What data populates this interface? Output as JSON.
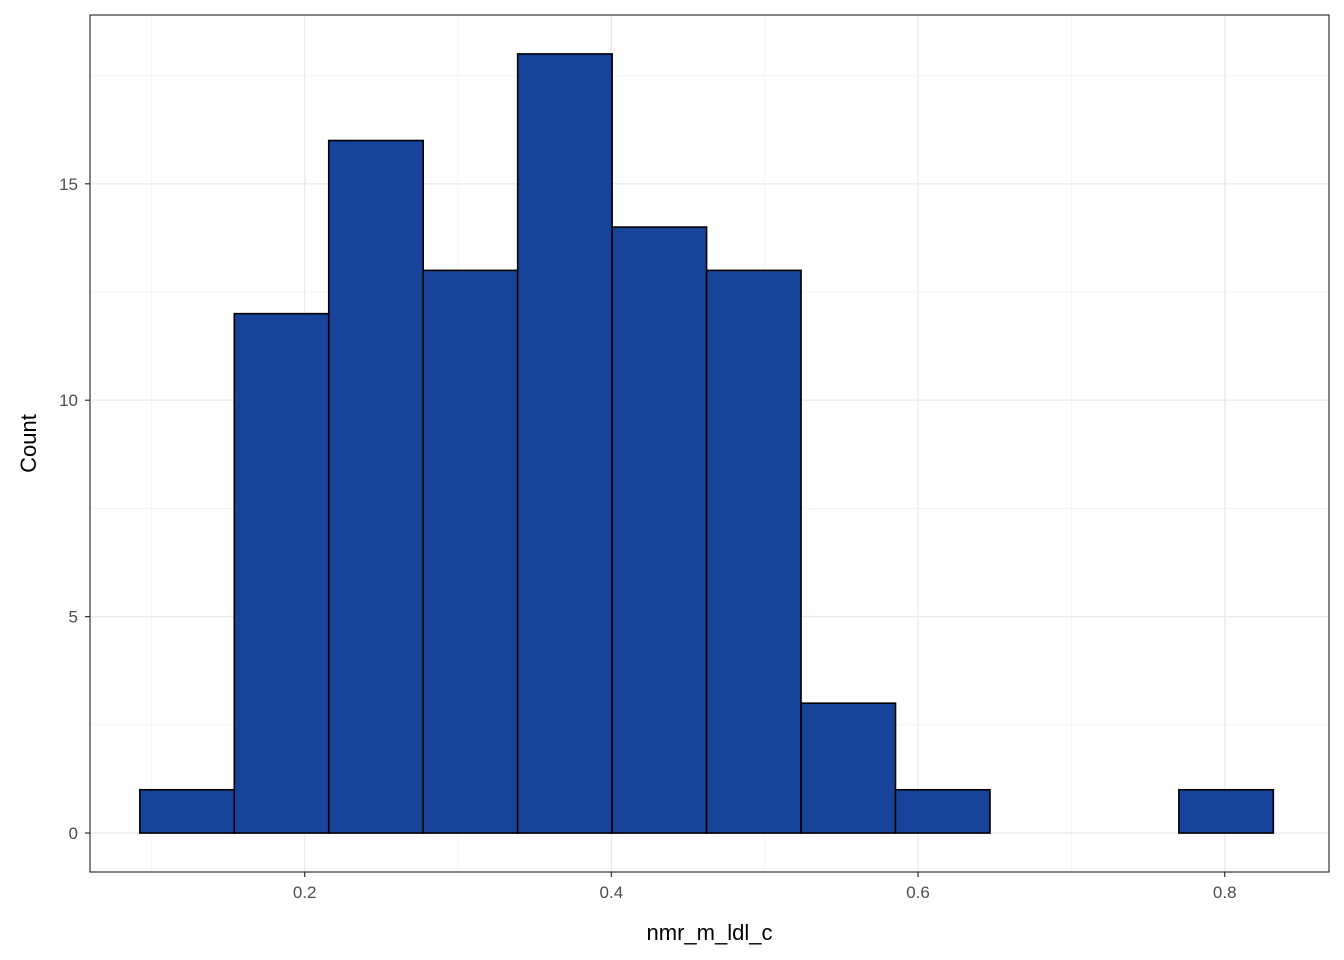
{
  "chart_data": {
    "type": "bar",
    "subtype": "histogram",
    "title": "",
    "xlabel": "nmr_m_ldl_c",
    "ylabel": "Count",
    "xlim": [
      0.06,
      0.868
    ],
    "ylim": [
      -0.9,
      18.9
    ],
    "xticks": [
      0.2,
      0.4,
      0.6,
      0.8
    ],
    "xtick_labels": [
      "0.2",
      "0.4",
      "0.6",
      "0.8"
    ],
    "yticks": [
      0,
      5,
      10,
      15
    ],
    "ytick_labels": [
      "0",
      "5",
      "10",
      "15"
    ],
    "grid": true,
    "legend": "none",
    "fill_color": "#17449a",
    "edge_color": "#000000",
    "bins": [
      {
        "x0": 0.0925,
        "x1": 0.1541,
        "count": 1
      },
      {
        "x0": 0.1541,
        "x1": 0.2157,
        "count": 12
      },
      {
        "x0": 0.2157,
        "x1": 0.2773,
        "count": 16
      },
      {
        "x0": 0.2773,
        "x1": 0.3389,
        "count": 13
      },
      {
        "x0": 0.3389,
        "x1": 0.4005,
        "count": 18
      },
      {
        "x0": 0.4005,
        "x1": 0.4621,
        "count": 14
      },
      {
        "x0": 0.4621,
        "x1": 0.5237,
        "count": 13
      },
      {
        "x0": 0.5237,
        "x1": 0.5853,
        "count": 3
      },
      {
        "x0": 0.5853,
        "x1": 0.6469,
        "count": 1
      },
      {
        "x0": 0.6469,
        "x1": 0.7085,
        "count": 0
      },
      {
        "x0": 0.7085,
        "x1": 0.7701,
        "count": 0
      },
      {
        "x0": 0.7701,
        "x1": 0.8317,
        "count": 1
      }
    ]
  }
}
